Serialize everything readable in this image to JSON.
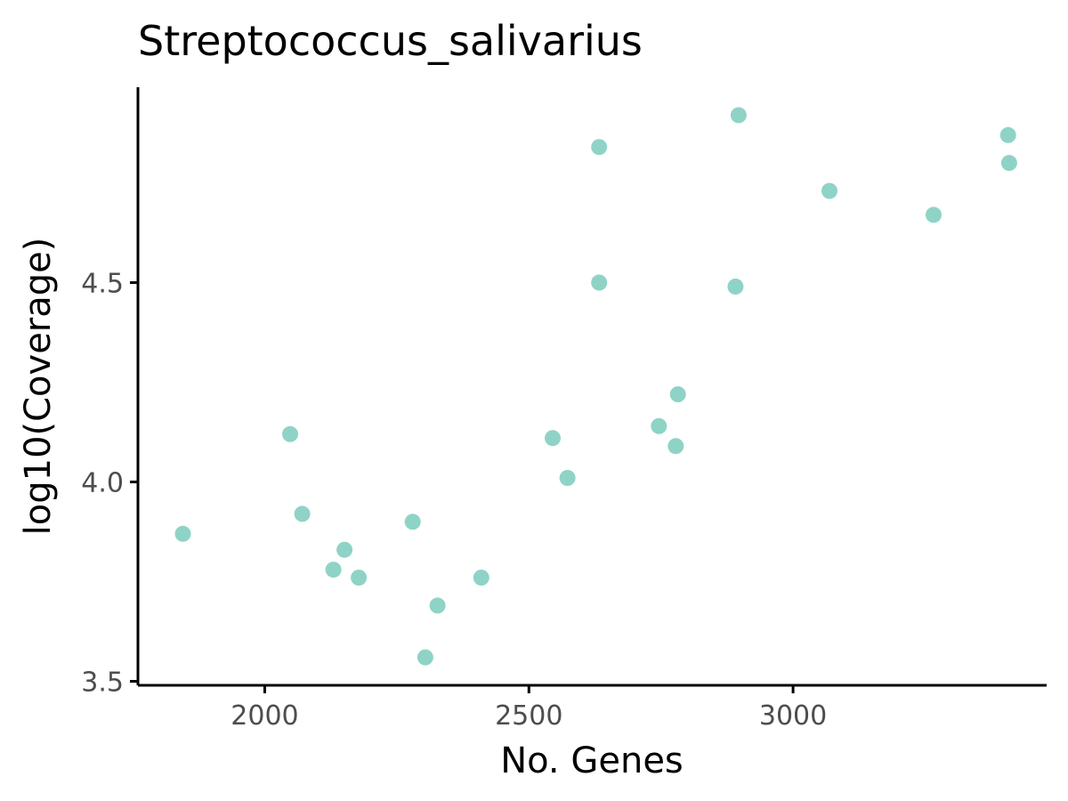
{
  "chart_data": {
    "type": "scatter",
    "title": "Streptococcus_salivarius",
    "xlabel": "No. Genes",
    "ylabel": "log10(Coverage)",
    "xlim": [
      1760,
      3480
    ],
    "ylim": [
      3.49,
      4.99
    ],
    "xticks": [
      2000,
      2500,
      3000
    ],
    "xtick_labels": [
      "2000",
      "2500",
      "3000"
    ],
    "yticks": [
      3.5,
      4.0,
      4.5
    ],
    "ytick_labels": [
      "3.5",
      "4.0",
      "4.5"
    ],
    "grid": false,
    "legend": "none",
    "point_color": "#8fd3c7",
    "points": [
      {
        "x": 1845,
        "y": 3.87
      },
      {
        "x": 2048,
        "y": 4.12
      },
      {
        "x": 2071,
        "y": 3.92
      },
      {
        "x": 2130,
        "y": 3.78
      },
      {
        "x": 2151,
        "y": 3.83
      },
      {
        "x": 2178,
        "y": 3.76
      },
      {
        "x": 2280,
        "y": 3.9
      },
      {
        "x": 2304,
        "y": 3.56
      },
      {
        "x": 2327,
        "y": 3.69
      },
      {
        "x": 2410,
        "y": 3.76
      },
      {
        "x": 2545,
        "y": 4.11
      },
      {
        "x": 2573,
        "y": 4.01
      },
      {
        "x": 2633,
        "y": 4.84
      },
      {
        "x": 2633,
        "y": 4.5
      },
      {
        "x": 2746,
        "y": 4.14
      },
      {
        "x": 2778,
        "y": 4.09
      },
      {
        "x": 2782,
        "y": 4.22
      },
      {
        "x": 2891,
        "y": 4.49
      },
      {
        "x": 2897,
        "y": 4.92
      },
      {
        "x": 3069,
        "y": 4.73
      },
      {
        "x": 3266,
        "y": 4.67
      },
      {
        "x": 3407,
        "y": 4.87
      },
      {
        "x": 3409,
        "y": 4.8
      }
    ]
  }
}
